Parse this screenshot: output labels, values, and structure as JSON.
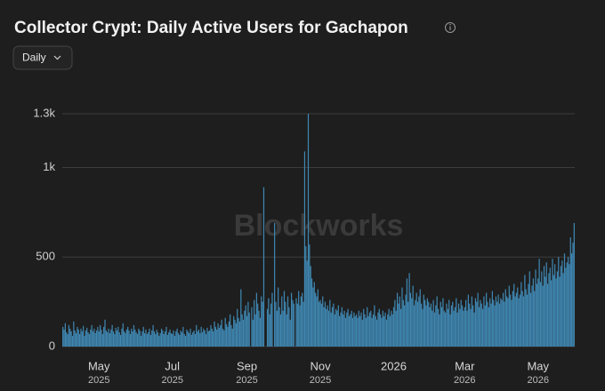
{
  "chart_data": {
    "type": "bar",
    "title": "Collector Crypt: Daily Active Users for Gachapon",
    "watermark": "Blockworks",
    "color": "#3f87b2",
    "grid": true,
    "ylim": [
      0,
      1300
    ],
    "yticks": [
      0,
      500,
      {
        "value": 1000,
        "label": "1k"
      },
      {
        "value": 1300,
        "label": "1.3k"
      }
    ],
    "categories": [
      null,
      null,
      null,
      null,
      null,
      null,
      null,
      null,
      null,
      null,
      null,
      null,
      null,
      null,
      null,
      null,
      null,
      null,
      null,
      null,
      null,
      null,
      null,
      null,
      null,
      null,
      null,
      null,
      null,
      null,
      [
        "May",
        "2025"
      ],
      null,
      null,
      null,
      null,
      null,
      null,
      null,
      null,
      null,
      null,
      null,
      null,
      null,
      null,
      null,
      null,
      null,
      null,
      null,
      null,
      null,
      null,
      null,
      null,
      null,
      null,
      null,
      null,
      null,
      null,
      null,
      null,
      null,
      null,
      null,
      null,
      null,
      null,
      null,
      null,
      null,
      null,
      null,
      null,
      null,
      null,
      null,
      null,
      null,
      null,
      null,
      null,
      null,
      null,
      null,
      null,
      null,
      null,
      null,
      null,
      [
        "Jul",
        "2025"
      ],
      null,
      null,
      null,
      null,
      null,
      null,
      null,
      null,
      null,
      null,
      null,
      null,
      null,
      null,
      null,
      null,
      null,
      null,
      null,
      null,
      null,
      null,
      null,
      null,
      null,
      null,
      null,
      null,
      null,
      null,
      null,
      null,
      null,
      null,
      null,
      null,
      null,
      null,
      null,
      null,
      null,
      null,
      null,
      null,
      null,
      null,
      null,
      null,
      null,
      null,
      null,
      null,
      null,
      null,
      null,
      null,
      null,
      null,
      null,
      null,
      null,
      [
        "Sep",
        "2025"
      ],
      null,
      null,
      null,
      null,
      null,
      null,
      null,
      null,
      null,
      null,
      null,
      null,
      null,
      null,
      null,
      null,
      null,
      null,
      null,
      null,
      null,
      null,
      null,
      null,
      null,
      null,
      null,
      null,
      null,
      null,
      null,
      null,
      null,
      null,
      null,
      null,
      null,
      null,
      null,
      null,
      null,
      null,
      null,
      null,
      null,
      null,
      null,
      null,
      null,
      null,
      null,
      null,
      null,
      null,
      null,
      null,
      null,
      null,
      null,
      null,
      [
        "Nov",
        "2025"
      ],
      null,
      null,
      null,
      null,
      null,
      null,
      null,
      null,
      null,
      null,
      null,
      null,
      null,
      null,
      null,
      null,
      null,
      null,
      null,
      null,
      null,
      null,
      null,
      null,
      null,
      null,
      null,
      null,
      null,
      null,
      null,
      null,
      null,
      null,
      null,
      null,
      null,
      null,
      null,
      null,
      null,
      null,
      null,
      null,
      null,
      null,
      null,
      null,
      null,
      null,
      null,
      null,
      null,
      null,
      null,
      null,
      null,
      null,
      null,
      null,
      [
        "2026"
      ],
      null,
      null,
      null,
      null,
      null,
      null,
      null,
      null,
      null,
      null,
      null,
      null,
      null,
      null,
      null,
      null,
      null,
      null,
      null,
      null,
      null,
      null,
      null,
      null,
      null,
      null,
      null,
      null,
      null,
      null,
      null,
      null,
      null,
      null,
      null,
      null,
      null,
      null,
      null,
      null,
      null,
      null,
      null,
      null,
      null,
      null,
      null,
      null,
      null,
      null,
      null,
      null,
      null,
      null,
      null,
      null,
      null,
      null,
      [
        "Mar",
        "2026"
      ],
      null,
      null,
      null,
      null,
      null,
      null,
      null,
      null,
      null,
      null,
      null,
      null,
      null,
      null,
      null,
      null,
      null,
      null,
      null,
      null,
      null,
      null,
      null,
      null,
      null,
      null,
      null,
      null,
      null,
      null,
      null,
      null,
      null,
      null,
      null,
      null,
      null,
      null,
      null,
      null,
      null,
      null,
      null,
      null,
      null,
      null,
      null,
      null,
      null,
      null,
      null,
      null,
      null,
      null,
      null,
      null,
      null,
      null,
      null,
      null,
      [
        "May",
        "2026"
      ],
      null,
      null,
      null,
      null,
      null,
      null,
      null,
      null,
      null,
      null,
      null,
      null,
      null,
      null,
      null,
      null,
      null,
      null,
      null,
      null,
      null,
      null,
      null,
      null,
      null,
      null,
      null,
      null,
      null,
      null
    ],
    "values": [
      110,
      95,
      130,
      80,
      70,
      120,
      100,
      85,
      60,
      140,
      90,
      75,
      110,
      95,
      70,
      100,
      85,
      115,
      60,
      90,
      105,
      80,
      70,
      95,
      120,
      85,
      100,
      75,
      90,
      110,
      85,
      120,
      95,
      70,
      110,
      150,
      90,
      80,
      100,
      75,
      95,
      120,
      85,
      70,
      105,
      90,
      110,
      80,
      65,
      100,
      130,
      85,
      75,
      95,
      110,
      90,
      70,
      100,
      85,
      120,
      95,
      80,
      70,
      100,
      90,
      60,
      85,
      110,
      75,
      95,
      70,
      80,
      100,
      65,
      90,
      120,
      85,
      70,
      95,
      80,
      60,
      75,
      100,
      90,
      70,
      85,
      110,
      65,
      80,
      95,
      75,
      70,
      90,
      60,
      85,
      100,
      75,
      65,
      90,
      80,
      110,
      70,
      60,
      95,
      85,
      75,
      100,
      65,
      80,
      90,
      70,
      120,
      85,
      95,
      75,
      110,
      80,
      100,
      90,
      70,
      105,
      85,
      90,
      120,
      100,
      85,
      140,
      110,
      95,
      130,
      105,
      120,
      150,
      100,
      90,
      160,
      125,
      110,
      140,
      180,
      120,
      100,
      170,
      150,
      130,
      210,
      160,
      140,
      320,
      180,
      150,
      200,
      230,
      170,
      250,
      190,
      0,
      220,
      150,
      260,
      180,
      300,
      240,
      200,
      160,
      280,
      250,
      890,
      0,
      0,
      210,
      270,
      180,
      240,
      300,
      0,
      690,
      250,
      200,
      330,
      220,
      180,
      280,
      200,
      310,
      250,
      180,
      280,
      220,
      150,
      300,
      260,
      240,
      0,
      270,
      240,
      310,
      230,
      280,
      300,
      250,
      1090,
      560,
      480,
      1300,
      570,
      450,
      380,
      330,
      360,
      300,
      280,
      320,
      250,
      260,
      240,
      280,
      220,
      250,
      210,
      230,
      200,
      260,
      190,
      220,
      240,
      180,
      210,
      200,
      230,
      170,
      190,
      220,
      180,
      200,
      160,
      190,
      210,
      170,
      180,
      200,
      160,
      190,
      170,
      180,
      160,
      200,
      170,
      190,
      150,
      210,
      180,
      160,
      220,
      170,
      190,
      200,
      160,
      180,
      230,
      170,
      150,
      190,
      210,
      180,
      160,
      200,
      170,
      190,
      150,
      180,
      210,
      170,
      200,
      180,
      220,
      260,
      200,
      300,
      240,
      280,
      210,
      330,
      260,
      230,
      290,
      380,
      250,
      410,
      300,
      270,
      340,
      230,
      260,
      300,
      250,
      280,
      320,
      240,
      210,
      290,
      260,
      230,
      270,
      250,
      220,
      240,
      200,
      260,
      190,
      230,
      280,
      210,
      180,
      250,
      220,
      270,
      200,
      190,
      240,
      210,
      260,
      180,
      230,
      250,
      200,
      220,
      270,
      190,
      240,
      210,
      260,
      230,
      200,
      220,
      260,
      200,
      290,
      240,
      210,
      280,
      230,
      190,
      270,
      250,
      300,
      220,
      260,
      240,
      210,
      280,
      230,
      300,
      250,
      220,
      270,
      240,
      310,
      260,
      230,
      280,
      250,
      290,
      240,
      270,
      260,
      300,
      250,
      320,
      280,
      270,
      340,
      290,
      260,
      310,
      350,
      280,
      300,
      330,
      270,
      290,
      360,
      310,
      280,
      400,
      320,
      290,
      350,
      420,
      300,
      340,
      380,
      310,
      430,
      350,
      380,
      490,
      360,
      420,
      340,
      450,
      390,
      470,
      350,
      410,
      440,
      370,
      490,
      400,
      460,
      380,
      420,
      500,
      390,
      450,
      480,
      410,
      520,
      440,
      470,
      500,
      460,
      610,
      520,
      580,
      690
    ]
  },
  "controls": {
    "interval": "Daily"
  }
}
